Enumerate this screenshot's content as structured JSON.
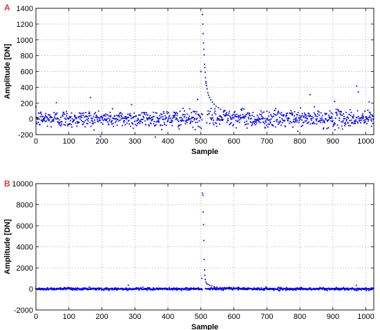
{
  "chart_data": [
    {
      "type": "scatter",
      "panel_label": "A",
      "xlabel": "Sample",
      "ylabel": "Amplitude [DN]",
      "xlim": [
        0,
        1024
      ],
      "ylim": [
        -200,
        1400
      ],
      "xticks": [
        0,
        100,
        200,
        300,
        400,
        500,
        600,
        700,
        800,
        900,
        1000
      ],
      "yticks": [
        -200,
        0,
        200,
        400,
        600,
        800,
        1000,
        1200,
        1400
      ],
      "grid": true,
      "marker_color": "#0000ff",
      "noise_std": 55,
      "pulse": [
        {
          "x": 505,
          "y": 1320
        },
        {
          "x": 506,
          "y": 1200
        },
        {
          "x": 507,
          "y": 1080
        },
        {
          "x": 508,
          "y": 960
        },
        {
          "x": 509,
          "y": 880
        },
        {
          "x": 510,
          "y": 810
        },
        {
          "x": 511,
          "y": 690
        },
        {
          "x": 512,
          "y": 650
        },
        {
          "x": 513,
          "y": 590
        },
        {
          "x": 514,
          "y": 520
        },
        {
          "x": 515,
          "y": 470
        },
        {
          "x": 516,
          "y": 450
        },
        {
          "x": 517,
          "y": 420
        },
        {
          "x": 519,
          "y": 380
        },
        {
          "x": 521,
          "y": 330
        },
        {
          "x": 523,
          "y": 300
        },
        {
          "x": 526,
          "y": 270
        },
        {
          "x": 530,
          "y": 240
        },
        {
          "x": 535,
          "y": 210
        },
        {
          "x": 540,
          "y": 185
        },
        {
          "x": 546,
          "y": 160
        },
        {
          "x": 553,
          "y": 140
        },
        {
          "x": 560,
          "y": 120
        },
        {
          "x": 570,
          "y": 100
        }
      ],
      "outliers": [
        {
          "x": 62,
          "y": 205
        },
        {
          "x": 165,
          "y": 270
        },
        {
          "x": 290,
          "y": 180
        },
        {
          "x": 490,
          "y": 245
        },
        {
          "x": 500,
          "y": 600
        },
        {
          "x": 831,
          "y": 305
        },
        {
          "x": 905,
          "y": 220
        },
        {
          "x": 972,
          "y": 415
        },
        {
          "x": 977,
          "y": 340
        },
        {
          "x": 1010,
          "y": 215
        }
      ]
    },
    {
      "type": "scatter",
      "panel_label": "B",
      "xlabel": "Sample",
      "ylabel": "Amplitude [DN]",
      "xlim": [
        0,
        1024
      ],
      "ylim": [
        -2000,
        10000
      ],
      "xticks": [
        0,
        100,
        200,
        300,
        400,
        500,
        600,
        700,
        800,
        900,
        1000
      ],
      "yticks": [
        -2000,
        0,
        2000,
        4000,
        6000,
        8000,
        10000
      ],
      "grid": true,
      "marker_color": "#0000ff",
      "noise_std": 55,
      "pulse": [
        {
          "x": 505,
          "y": 9100
        },
        {
          "x": 506,
          "y": 8900
        },
        {
          "x": 507,
          "y": 7300
        },
        {
          "x": 508,
          "y": 6100
        },
        {
          "x": 509,
          "y": 4600
        },
        {
          "x": 510,
          "y": 2800
        },
        {
          "x": 511,
          "y": 1800
        },
        {
          "x": 512,
          "y": 1300
        },
        {
          "x": 513,
          "y": 900
        },
        {
          "x": 515,
          "y": 650
        },
        {
          "x": 518,
          "y": 500
        },
        {
          "x": 522,
          "y": 420
        },
        {
          "x": 527,
          "y": 350
        },
        {
          "x": 533,
          "y": 280
        },
        {
          "x": 540,
          "y": 220
        },
        {
          "x": 548,
          "y": 170
        },
        {
          "x": 558,
          "y": 130
        },
        {
          "x": 570,
          "y": 100
        }
      ],
      "outliers": [
        {
          "x": 280,
          "y": 350
        },
        {
          "x": 503,
          "y": 1000
        },
        {
          "x": 971,
          "y": 330
        }
      ]
    }
  ]
}
